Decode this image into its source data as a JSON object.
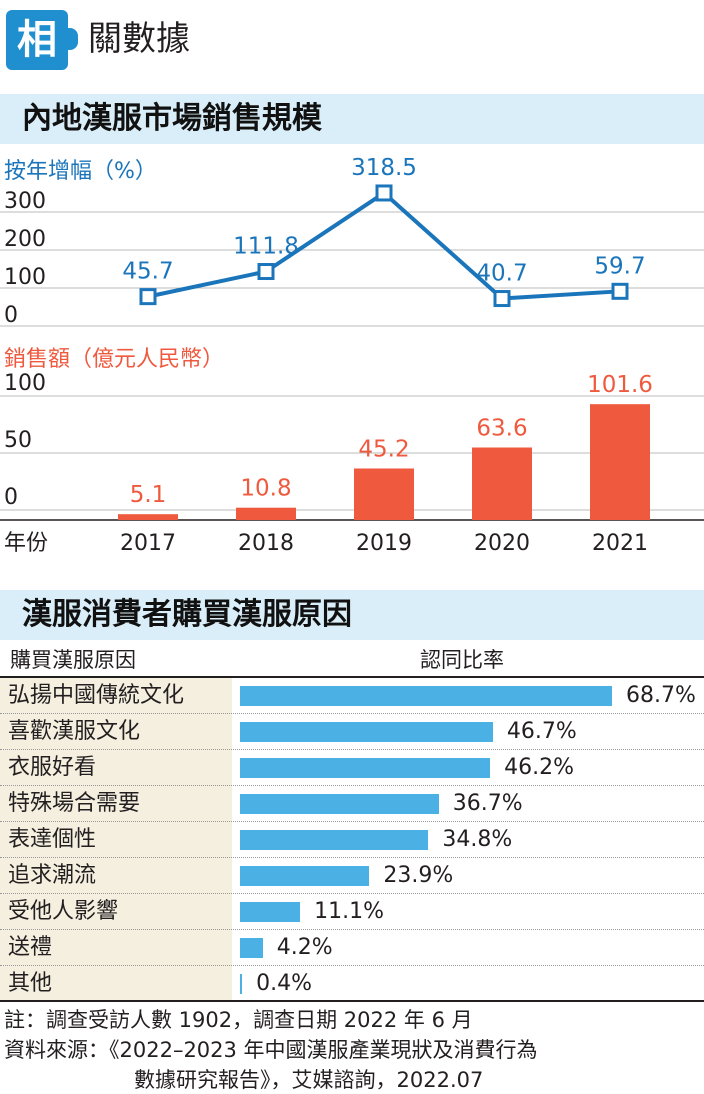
{
  "header": {
    "logo_char": "相",
    "title": "關數據"
  },
  "section1": {
    "title": "內地漢服市場銷售規模"
  },
  "section2": {
    "title": "漢服消費者購買漢服原因"
  },
  "colors": {
    "line": "#1b75bb",
    "bar": "#ef5a3f",
    "hbar": "#4bb0e3",
    "band": "#d9eef8"
  },
  "chart_data": [
    {
      "type": "line",
      "ylabel": "按年增幅（%）",
      "ylim": [
        0,
        300
      ],
      "yticks": [
        "0",
        "100",
        "200",
        "300"
      ],
      "x": [
        "2017",
        "2018",
        "2019",
        "2020",
        "2021"
      ],
      "values": [
        45.7,
        111.8,
        318.5,
        40.7,
        59.7
      ],
      "labels": [
        "45.7",
        "111.8",
        "318.5",
        "40.7",
        "59.7"
      ]
    },
    {
      "type": "bar",
      "ylabel": "銷售額（億元人民幣）",
      "ylim": [
        0,
        100
      ],
      "yticks": [
        "0",
        "50",
        "100"
      ],
      "xlabel": "年份",
      "categories": [
        "2017",
        "2018",
        "2019",
        "2020",
        "2021"
      ],
      "values": [
        5.1,
        10.8,
        45.2,
        63.6,
        101.6
      ],
      "labels": [
        "5.1",
        "10.8",
        "45.2",
        "63.6",
        "101.6"
      ]
    },
    {
      "type": "bar",
      "orientation": "horizontal",
      "column_headers": [
        "購買漢服原因",
        "認同比率"
      ],
      "categories": [
        "弘揚中國傳統文化",
        "喜歡漢服文化",
        "衣服好看",
        "特殊場合需要",
        "表達個性",
        "追求潮流",
        "受他人影響",
        "送禮",
        "其他"
      ],
      "values": [
        68.7,
        46.7,
        46.2,
        36.7,
        34.8,
        23.9,
        11.1,
        4.2,
        0.4
      ],
      "labels": [
        "68.7%",
        "46.7%",
        "46.2%",
        "36.7%",
        "34.8%",
        "23.9%",
        "11.1%",
        "4.2%",
        "0.4%"
      ],
      "xlim": [
        0,
        68.7
      ]
    }
  ],
  "footer": {
    "note": "註：調查受訪人數 1902，調查日期 2022 年 6 月",
    "source_line1": "資料來源：《2022–2023 年中國漢服產業現狀及消費行為",
    "source_line2": "數據研究報告》，艾媒諮詢，2022.07"
  }
}
